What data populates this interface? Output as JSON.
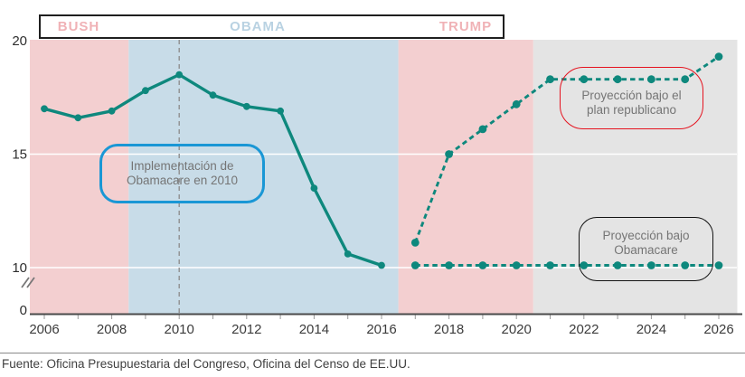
{
  "page": {
    "source_note": "Fuente: Oficina Presupuestaria del Congreso, Oficina del Censo de EE.UU."
  },
  "chart_data": {
    "type": "line",
    "x_range": [
      2006,
      2026
    ],
    "xticks": [
      2006,
      2008,
      2010,
      2012,
      2014,
      2016,
      2018,
      2020,
      2022,
      2024,
      2026
    ],
    "yticks": [
      20,
      15,
      10,
      0
    ],
    "gridlines": [
      15,
      10
    ],
    "axis_break_between": [
      0,
      10
    ],
    "line_color": "#0e887d",
    "event_line": {
      "x": 2010,
      "style": "dashed",
      "color": "#8f8f8f"
    },
    "eras": [
      {
        "label": "BUSH",
        "start": 2005.57,
        "end": 2008.5,
        "band_color": "#f3cfd0",
        "label_color": "#f0b2b6"
      },
      {
        "label": "OBAMA",
        "start": 2008.5,
        "end": 2016.5,
        "band_color": "#c8dce8",
        "label_color": "#b9d2e2"
      },
      {
        "label": "TRUMP",
        "start": 2016.5,
        "end": 2020.5,
        "band_color": "#f3cfd0",
        "label_color": "#f0b2b6"
      },
      {
        "label": "",
        "start": 2020.5,
        "end": 2026.55,
        "band_color": "#e4e4e4",
        "label_color": ""
      }
    ],
    "series": [
      {
        "name": "historico",
        "style": "solid",
        "x": [
          2006,
          2007,
          2008,
          2009,
          2010,
          2011,
          2012,
          2013,
          2014,
          2015,
          2016
        ],
        "values": [
          17.0,
          16.6,
          16.9,
          17.8,
          18.5,
          17.6,
          17.1,
          16.9,
          13.5,
          10.6,
          10.1
        ]
      },
      {
        "name": "proyeccion-plan-republicano",
        "style": "dotted",
        "x": [
          2017,
          2018,
          2019,
          2020,
          2021,
          2022,
          2023,
          2024,
          2025,
          2026
        ],
        "values": [
          11.1,
          15.0,
          16.1,
          17.2,
          18.3,
          18.3,
          18.3,
          18.3,
          18.3,
          19.3
        ]
      },
      {
        "name": "proyeccion-obamacare",
        "style": "dotted",
        "x": [
          2017,
          2018,
          2019,
          2020,
          2021,
          2022,
          2023,
          2024,
          2025,
          2026
        ],
        "values": [
          10.1,
          10.1,
          10.1,
          10.1,
          10.1,
          10.1,
          10.1,
          10.1,
          10.1,
          10.1
        ]
      }
    ],
    "annotations": [
      {
        "id": "implementacion-obamacare",
        "lines": [
          "Implementación de",
          "Obamacare en 2010"
        ],
        "border_color": "#1a97d5"
      },
      {
        "id": "proyeccion-republicana",
        "lines": [
          "Proyección bajo el",
          "plan republicano"
        ],
        "border_color": "#e5131f"
      },
      {
        "id": "proyeccion-obamacare",
        "lines": [
          "Proyección bajo",
          "Obamacare"
        ],
        "border_color": "#141414"
      }
    ]
  }
}
